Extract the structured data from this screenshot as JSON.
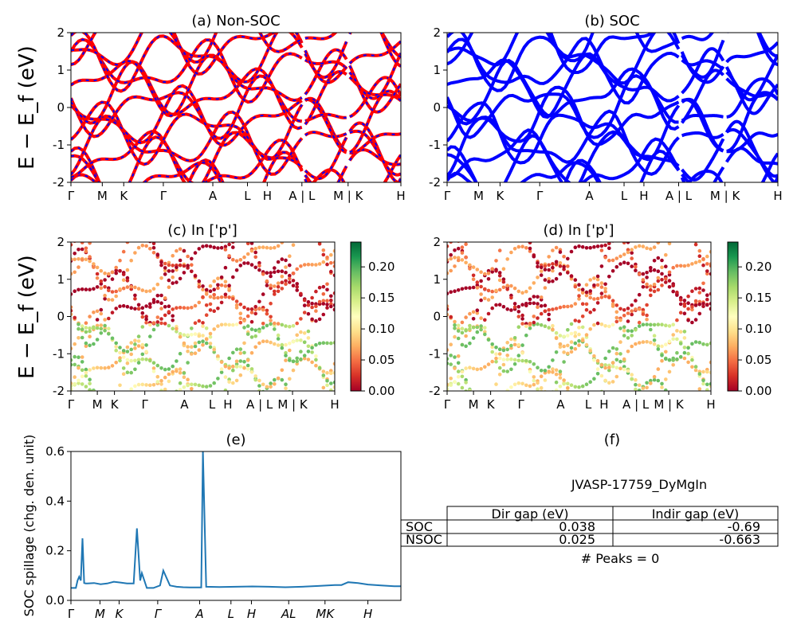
{
  "chart_data": [
    {
      "type": "line",
      "title": "(a) Non-SOC",
      "ylabel": "E − E_f (eV)",
      "ylim": [
        -2,
        2
      ],
      "yticks": [
        -2,
        -1,
        0,
        1,
        2
      ],
      "kpath_labels": [
        "Γ",
        "M",
        "K",
        "Γ",
        "A",
        "L",
        "H",
        "A | L",
        "M | K",
        "H"
      ],
      "kpath_positions": [
        0,
        1,
        1.6,
        2.75,
        4.2,
        5.3,
        5.9,
        7.05,
        8.1,
        10.0
      ],
      "series_colors": [
        "#ff0000",
        "#0000ff"
      ],
      "line_style": "red solid with blue dashes",
      "discontinuities_at": [
        7.05,
        8.1
      ]
    },
    {
      "type": "line",
      "title": "(b) SOC",
      "ylim": [
        -2,
        2
      ],
      "yticks": [
        -2,
        -1,
        0,
        1,
        2
      ],
      "kpath_labels": [
        "Γ",
        "M",
        "K",
        "Γ",
        "A",
        "L",
        "H",
        "A | L",
        "M | K",
        "H"
      ],
      "kpath_positions": [
        0,
        1,
        1.6,
        2.75,
        4.2,
        5.3,
        5.9,
        7.05,
        8.1,
        10.0
      ],
      "series_colors": [
        "#0000ff"
      ],
      "discontinuities_at": [
        7.05,
        8.1
      ]
    },
    {
      "type": "scatter",
      "title": "(c)  In ['p']",
      "ylabel": "E − E_f (eV)",
      "ylim": [
        -2,
        2
      ],
      "yticks": [
        -2,
        -1,
        0,
        1,
        2
      ],
      "kpath_labels": [
        "Γ",
        "M",
        "K",
        "Γ",
        "A",
        "L",
        "H",
        "A | L",
        "M | K",
        "H"
      ],
      "colormap": "RdYlGn",
      "colorbar_range": [
        0.0,
        0.24
      ],
      "colorbar_ticks": [
        "0.00",
        "0.05",
        "0.10",
        "0.15",
        "0.20"
      ]
    },
    {
      "type": "scatter",
      "title": "(d) In ['p']",
      "ylim": [
        -2,
        2
      ],
      "yticks": [
        -2,
        -1,
        0,
        1,
        2
      ],
      "kpath_labels": [
        "Γ",
        "M",
        "K",
        "Γ",
        "A",
        "L",
        "H",
        "A | L",
        "M | K",
        "H"
      ],
      "colormap": "RdYlGn",
      "colorbar_range": [
        0.0,
        0.24
      ],
      "colorbar_ticks": [
        "0.00",
        "0.05",
        "0.10",
        "0.15",
        "0.20"
      ]
    },
    {
      "type": "line",
      "title": "(e)",
      "ylabel": "SOC spillage (chg. den. unit)",
      "ylim": [
        0,
        0.6
      ],
      "yticks": [
        "0.0",
        "0.2",
        "0.4",
        "0.6"
      ],
      "xlim": [
        0,
        10
      ],
      "kpath_labels": [
        "Γ",
        "M",
        "K",
        "Γ",
        "A",
        "L",
        "H",
        "AL",
        "MK",
        "H"
      ],
      "kpath_positions": [
        0,
        0.88,
        1.46,
        2.63,
        3.9,
        4.85,
        5.47,
        6.6,
        7.7,
        9.0
      ],
      "color": "#1f77b4",
      "x": [
        0,
        0.15,
        0.2,
        0.25,
        0.3,
        0.35,
        0.4,
        0.45,
        0.5,
        0.7,
        0.9,
        1.1,
        1.3,
        1.5,
        1.7,
        1.9,
        2.0,
        2.1,
        2.15,
        2.3,
        2.5,
        2.7,
        2.8,
        3.0,
        3.2,
        3.4,
        3.6,
        3.8,
        3.95,
        4.0,
        4.1,
        4.5,
        5.0,
        5.5,
        6.0,
        6.5,
        7.0,
        7.5,
        8.0,
        8.2,
        8.4,
        8.7,
        9.0,
        9.4,
        9.8,
        10.0
      ],
      "y": [
        0.05,
        0.05,
        0.08,
        0.095,
        0.08,
        0.25,
        0.07,
        0.068,
        0.068,
        0.07,
        0.065,
        0.068,
        0.075,
        0.072,
        0.068,
        0.068,
        0.29,
        0.08,
        0.11,
        0.05,
        0.05,
        0.06,
        0.12,
        0.06,
        0.055,
        0.053,
        0.052,
        0.052,
        0.052,
        0.6,
        0.055,
        0.054,
        0.055,
        0.056,
        0.055,
        0.053,
        0.055,
        0.058,
        0.062,
        0.062,
        0.073,
        0.07,
        0.064,
        0.06,
        0.057,
        0.057
      ]
    },
    {
      "type": "table",
      "title": "(f)",
      "subtitle": "JVASP-17759_DyMgIn",
      "columns": [
        "Dir gap (eV)",
        "Indir gap (eV)"
      ],
      "rows": [
        {
          "label": "SOC",
          "values": [
            "0.038",
            "-0.69"
          ]
        },
        {
          "label": "NSOC",
          "values": [
            "0.025",
            "-0.663"
          ]
        }
      ],
      "footer": "# Peaks = 0"
    }
  ]
}
